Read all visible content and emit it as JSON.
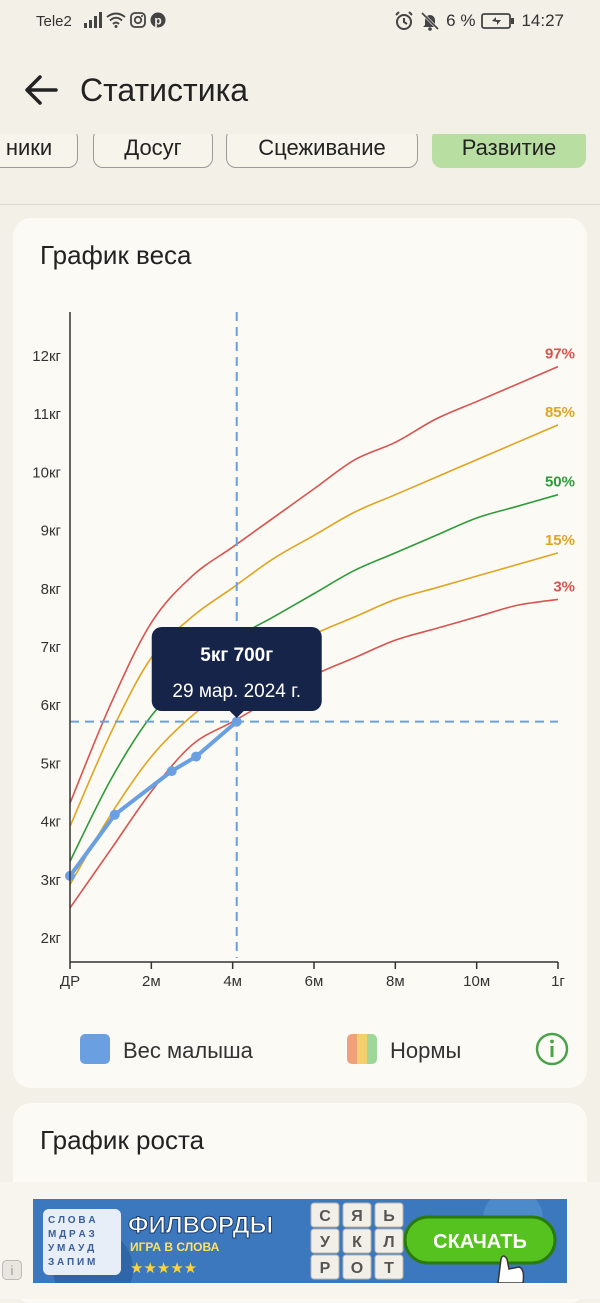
{
  "status_bar": {
    "carrier": "Tele2",
    "battery": "6 %",
    "time": "14:27"
  },
  "header": {
    "title": "Статистика"
  },
  "tabs": [
    {
      "label": "ники"
    },
    {
      "label": "Досуг"
    },
    {
      "label": "Сцеживание"
    },
    {
      "label": "Развитие",
      "active": true
    }
  ],
  "weight_card": {
    "title": "График веса",
    "tooltip": {
      "value": "5кг 700г",
      "date": "29 мар. 2024 г."
    },
    "legend": {
      "baby": "Вес малыша",
      "norms": "Нормы"
    }
  },
  "height_card": {
    "title": "График роста"
  },
  "chart_data": {
    "type": "line",
    "title": "График веса",
    "xlabel": "",
    "ylabel": "",
    "x_ticks": [
      {
        "value": 0,
        "label": "ДР"
      },
      {
        "value": 2,
        "label": "2м"
      },
      {
        "value": 4,
        "label": "4м"
      },
      {
        "value": 6,
        "label": "6м"
      },
      {
        "value": 8,
        "label": "8м"
      },
      {
        "value": 10,
        "label": "10м"
      },
      {
        "value": 12,
        "label": "1г"
      }
    ],
    "y_ticks": [
      {
        "value": 2,
        "label": "2кг"
      },
      {
        "value": 3,
        "label": "3кг"
      },
      {
        "value": 4,
        "label": "4кг"
      },
      {
        "value": 5,
        "label": "5кг"
      },
      {
        "value": 6,
        "label": "6кг"
      },
      {
        "value": 7,
        "label": "7кг"
      },
      {
        "value": 8,
        "label": "8кг"
      },
      {
        "value": 9,
        "label": "9кг"
      },
      {
        "value": 10,
        "label": "10кг"
      },
      {
        "value": 11,
        "label": "11кг"
      },
      {
        "value": 12,
        "label": "12кг"
      }
    ],
    "xlim": [
      0,
      12
    ],
    "ylim": [
      1.4,
      12.4
    ],
    "x": [
      0,
      1,
      2,
      3,
      4,
      5,
      6,
      7,
      8,
      9,
      10,
      11,
      12
    ],
    "norms": [
      {
        "name": "97%",
        "color": "#d9534f",
        "values": [
          4.3,
          6.0,
          7.4,
          8.2,
          8.7,
          9.2,
          9.7,
          10.2,
          10.5,
          10.9,
          11.2,
          11.5,
          11.8
        ]
      },
      {
        "name": "85%",
        "color": "#e0a41f",
        "values": [
          3.9,
          5.5,
          6.8,
          7.5,
          8.0,
          8.5,
          8.9,
          9.3,
          9.6,
          9.9,
          10.2,
          10.5,
          10.8
        ]
      },
      {
        "name": "50%",
        "color": "#2e9b3a",
        "values": [
          3.3,
          4.7,
          5.8,
          6.5,
          7.1,
          7.5,
          7.9,
          8.3,
          8.6,
          8.9,
          9.2,
          9.4,
          9.6
        ]
      },
      {
        "name": "15%",
        "color": "#e0a41f",
        "values": [
          2.9,
          4.1,
          5.1,
          5.8,
          6.3,
          6.8,
          7.2,
          7.5,
          7.8,
          8.0,
          8.2,
          8.4,
          8.6
        ]
      },
      {
        "name": "3%",
        "color": "#d9534f",
        "values": [
          2.5,
          3.5,
          4.5,
          5.3,
          5.7,
          6.1,
          6.5,
          6.8,
          7.1,
          7.3,
          7.5,
          7.7,
          7.8
        ]
      }
    ],
    "baby_weight": {
      "name": "Вес малыша",
      "color": "#6a9fe2",
      "points": [
        {
          "x": 0,
          "y": 3.05
        },
        {
          "x": 1.1,
          "y": 4.1
        },
        {
          "x": 2.5,
          "y": 4.85
        },
        {
          "x": 3.1,
          "y": 5.1
        },
        {
          "x": 4.1,
          "y": 5.7
        }
      ]
    },
    "crosshair": {
      "x": 4.1,
      "y": 5.7
    },
    "legend_position": "bottom"
  },
  "ad": {
    "title": "ФИЛВОРДЫ",
    "subtitle": "ИГРА В СЛОВА",
    "button": "СКАЧАТЬ",
    "letters": [
      "С",
      "Я",
      "Ь",
      "У",
      "К",
      "Л",
      "Р",
      "О",
      "Т"
    ]
  }
}
